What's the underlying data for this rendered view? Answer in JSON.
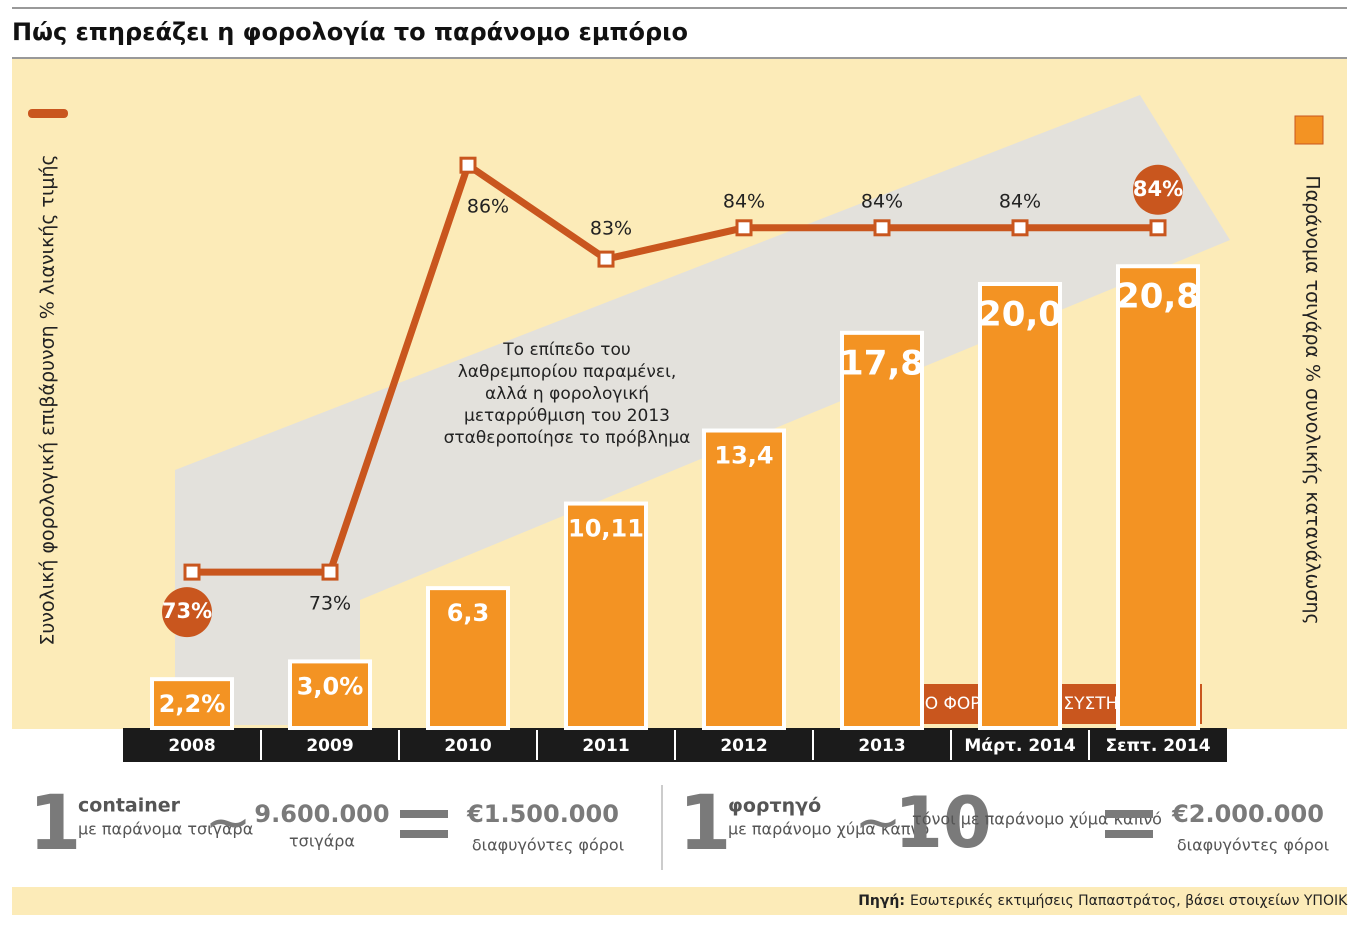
{
  "chart_data": {
    "type": "bar-line",
    "title": "Πώς επηρεάζει η φορολογία το παράνομο εμπόριο",
    "y_label": "Συνολική φορολογική επιβάρυνση % λιανικής τιμής",
    "y2_label": "Παράνομα τσιγάρα % συνολικής κατανάλωσης",
    "annotation": "Το επίπεδο του λαθρεμπορίου παραμένει, αλλά η φορολογική μεταρρύθμιση του 2013 σταθεροποίησε το πρόβλημα",
    "band_label": "ΝΕΟ ΦΟΡΟΛΟΓΙΚΟ ΣΥΣΤΗΜΑ",
    "categories": [
      "2008",
      "2009",
      "2010",
      "2011",
      "2012",
      "2013",
      "Μάρτ. 2014",
      "Σεπτ. 2014"
    ],
    "series": [
      {
        "type": "bar",
        "axis": "y2",
        "color": "#f39323",
        "values": [
          2.2,
          3.0,
          6.3,
          10.11,
          13.4,
          17.8,
          20.0,
          20.8
        ],
        "value_labels": [
          "2,2%",
          "3,0%",
          "6,3",
          "10,11",
          "13,4",
          "17,8",
          "20,0",
          "20,8"
        ]
      },
      {
        "type": "line",
        "color": "#c9561e",
        "values": [
          73,
          73,
          86,
          83,
          84,
          84,
          84,
          84
        ],
        "value_labels": [
          "73%",
          "73%",
          "86%",
          "83%",
          "84%",
          "84%",
          "84%",
          "84%"
        ]
      }
    ]
  },
  "info": [
    {
      "count": "1",
      "unit": "container",
      "desc": "με παράνομα τσιγάρα",
      "amount": "9.600.000",
      "amount_unit": "τσιγάρα",
      "value": "€1.500.000",
      "value_desc": "διαφυγόντες φόροι"
    },
    {
      "count": "1",
      "unit": "φορτηγό",
      "desc": "με παράνομο χύμα καπνό",
      "amount": "10",
      "amount_unit": "τόνοι με παράνομο χύμα καπνό",
      "value": "€2.000.000",
      "value_desc": "διαφυγόντες φόροι"
    }
  ],
  "source": {
    "label": "Πηγή:",
    "text": "Εσωτερικές εκτιμήσεις Παπαστράτος, βάσει στοιχείων ΥΠΟΙΚ"
  }
}
